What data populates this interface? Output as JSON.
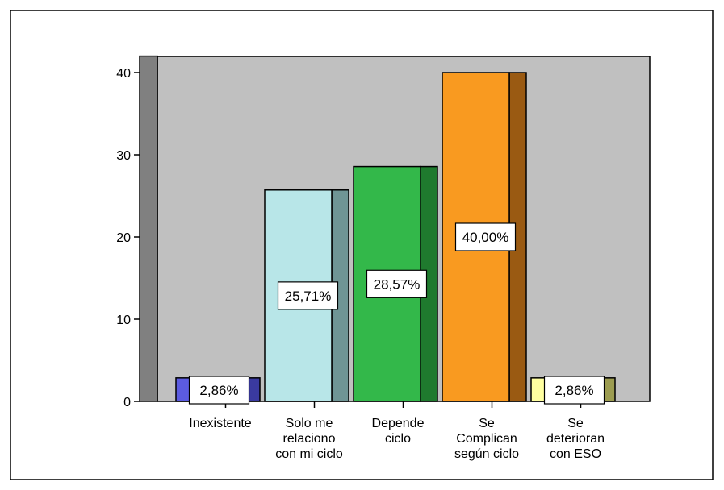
{
  "chart_data": {
    "type": "bar",
    "style": "3d",
    "categories": [
      [
        "Inexistente"
      ],
      [
        "Solo me",
        "relaciono",
        "con mi ciclo"
      ],
      [
        "Depende",
        "ciclo"
      ],
      [
        "Se",
        "Complican",
        "según ciclo"
      ],
      [
        "Se",
        "deterioran",
        "con ESO"
      ]
    ],
    "values": [
      2.86,
      25.71,
      28.57,
      40.0,
      2.86
    ],
    "value_labels": [
      "2,86%",
      "25,71%",
      "28,57%",
      "40,00%",
      "2,86%"
    ],
    "colors": {
      "front": [
        "#5b5be0",
        "#b8e6e8",
        "#33b84a",
        "#f99a20",
        "#ffffa0"
      ],
      "side": [
        "#3a3aa0",
        "#6f9595",
        "#1f7a2e",
        "#9a5a12",
        "#9c9c50"
      ],
      "plot_background": "#c0c0c0",
      "wall": "#808080"
    },
    "y_ticks": [
      0,
      10,
      20,
      30,
      40
    ],
    "y_tick_labels": [
      "0",
      "10",
      "20",
      "30",
      "40"
    ],
    "ylim": [
      0,
      42
    ],
    "grid": false,
    "legend": "none",
    "title": "",
    "xlabel": "",
    "ylabel": ""
  }
}
